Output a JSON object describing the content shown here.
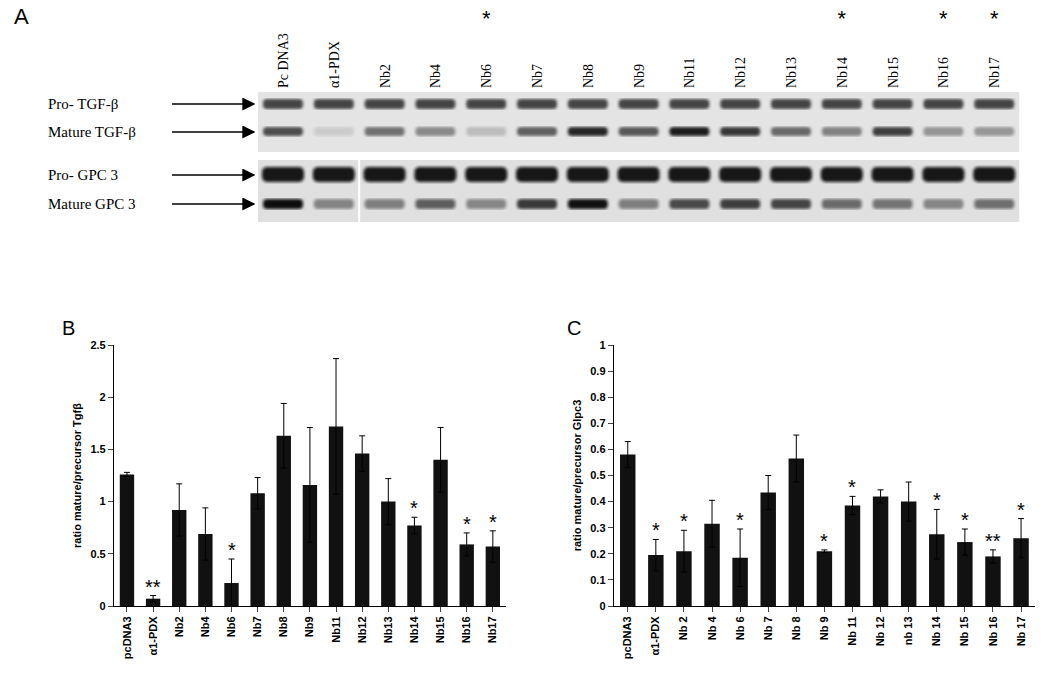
{
  "blot": {
    "label": "A",
    "lanes": [
      "Pc DNA3",
      "α1-PDX",
      "Nb2",
      "Nb4",
      "Nb6",
      "Nb7",
      "Nb8",
      "Nb9",
      "Nb11",
      "Nb12",
      "Nb13",
      "Nb14",
      "Nb15",
      "Nb16",
      "Nb17"
    ],
    "starred": [
      "Nb6",
      "Nb14",
      "Nb16",
      "Nb17"
    ],
    "star": "*",
    "rows": [
      "Pro- TGF-β",
      "Mature TGF-β",
      "Pro- GPC 3",
      "Mature GPC 3"
    ]
  },
  "chart_data": [
    {
      "label": "B",
      "type": "bar",
      "color": "#111111",
      "y_label": "ratio mature/precursor Tgfβ",
      "categories": [
        "pcDNA3",
        "α1-PDX",
        "Nb2",
        "Nb4",
        "Nb6",
        "Nb7",
        "Nb8",
        "Nb9",
        "Nb11",
        "Nb12",
        "Nb13",
        "Nb14",
        "Nb15",
        "Nb16",
        "Nb17"
      ],
      "values": [
        1.26,
        0.07,
        0.92,
        0.69,
        0.22,
        1.08,
        1.63,
        1.16,
        1.72,
        1.46,
        1.0,
        0.77,
        1.4,
        0.59,
        0.57
      ],
      "error": [
        0.02,
        0.03,
        0.25,
        0.25,
        0.23,
        0.15,
        0.31,
        0.55,
        0.65,
        0.17,
        0.22,
        0.08,
        0.31,
        0.11,
        0.15
      ],
      "ylim": [
        0,
        2.5
      ],
      "yticks": [
        0,
        0.5,
        1,
        1.5,
        2,
        2.5
      ],
      "grid": false,
      "annotations": [
        {
          "category": "α1-PDX",
          "text": "**"
        },
        {
          "category": "Nb6",
          "text": "*"
        },
        {
          "category": "Nb14",
          "text": "*"
        },
        {
          "category": "Nb16",
          "text": "*"
        },
        {
          "category": "Nb17",
          "text": "*"
        }
      ]
    },
    {
      "label": "C",
      "type": "bar",
      "color": "#111111",
      "y_label": "ratio mature/precursor Glpc3",
      "categories": [
        "pcDNA3",
        "α1-PDX",
        "Nb 2",
        "Nb 4",
        "Nb 6",
        "Nb 7",
        "Nb 8",
        "Nb 9",
        "Nb 11",
        "Nb 12",
        "nb 13",
        "Nb 14",
        "Nb 15",
        "Nb 16",
        "Nb 17"
      ],
      "values": [
        0.58,
        0.195,
        0.21,
        0.315,
        0.185,
        0.435,
        0.565,
        0.21,
        0.385,
        0.42,
        0.4,
        0.275,
        0.245,
        0.19,
        0.26
      ],
      "error": [
        0.05,
        0.06,
        0.08,
        0.09,
        0.11,
        0.065,
        0.09,
        0.005,
        0.035,
        0.025,
        0.075,
        0.095,
        0.05,
        0.025,
        0.075
      ],
      "ylim": [
        0,
        1
      ],
      "yticks": [
        0,
        0.1,
        0.2,
        0.3,
        0.4,
        0.5,
        0.6,
        0.7,
        0.8,
        0.9,
        1
      ],
      "grid": false,
      "annotations": [
        {
          "category": "α1-PDX",
          "text": "*"
        },
        {
          "category": "Nb 2",
          "text": "*"
        },
        {
          "category": "Nb 6",
          "text": "*"
        },
        {
          "category": "Nb 9",
          "text": "*"
        },
        {
          "category": "Nb 11",
          "text": "*"
        },
        {
          "category": "Nb 14",
          "text": "*"
        },
        {
          "category": "Nb 15",
          "text": "*"
        },
        {
          "category": "Nb 16",
          "text": "**"
        },
        {
          "category": "Nb 17",
          "text": "*"
        }
      ]
    }
  ]
}
